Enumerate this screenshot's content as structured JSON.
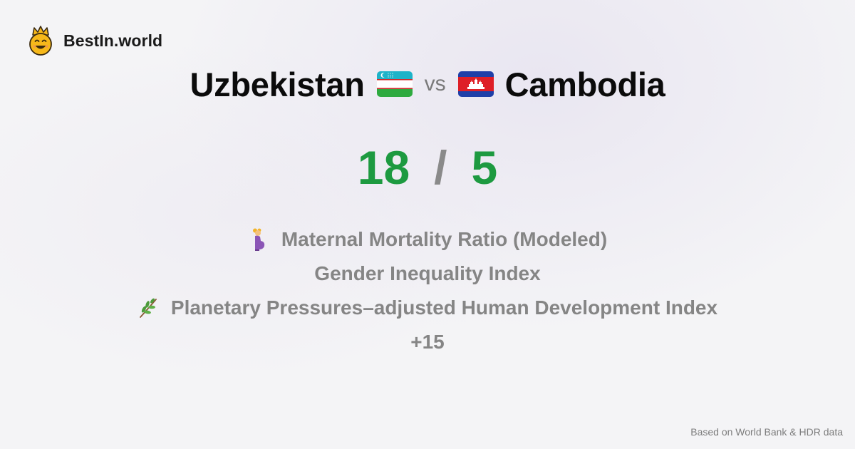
{
  "brand": {
    "name": "BestIn.world",
    "logo_icon": "crowned-smiley-icon"
  },
  "comparison": {
    "left_country": "Uzbekistan",
    "left_flag": "uzbekistan-flag-icon",
    "vs_label": "vs",
    "right_country": "Cambodia",
    "right_flag": "cambodia-flag-icon"
  },
  "score": {
    "left": "18",
    "separator": "/",
    "right": "5",
    "color": "#1d9a40"
  },
  "metrics": [
    {
      "icon": "pregnant-woman-icon",
      "label": "Maternal Mortality Ratio (Modeled)"
    },
    {
      "icon": "",
      "label": "Gender Inequality Index"
    },
    {
      "icon": "herb-icon",
      "label": "Planetary Pressures–adjusted Human Development Index"
    }
  ],
  "more_label": "+15",
  "footer": {
    "source": "Based on World Bank & HDR data"
  }
}
